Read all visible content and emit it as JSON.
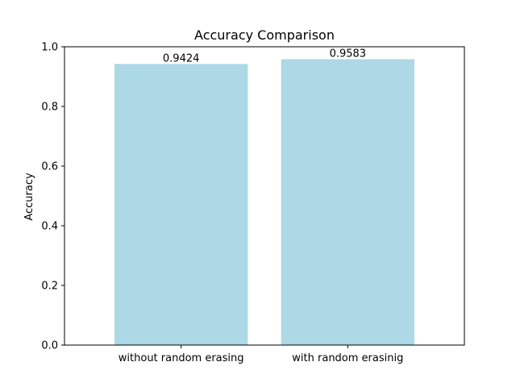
{
  "chart_data": {
    "type": "bar",
    "title": "Accuracy Comparison",
    "xlabel": "",
    "ylabel": "Accuracy",
    "categories": [
      "without random erasing",
      "with random erasinig"
    ],
    "values": [
      0.9424,
      0.9583
    ],
    "data_labels": [
      "0.9424",
      "0.9583"
    ],
    "ylim": [
      0,
      1.0
    ],
    "yticks": [
      0.0,
      0.2,
      0.4,
      0.6,
      0.8,
      1.0
    ],
    "ytick_labels": [
      "0.0",
      "0.2",
      "0.4",
      "0.6",
      "0.8",
      "1.0"
    ],
    "grid": false,
    "bar_color": "#add8e6"
  }
}
